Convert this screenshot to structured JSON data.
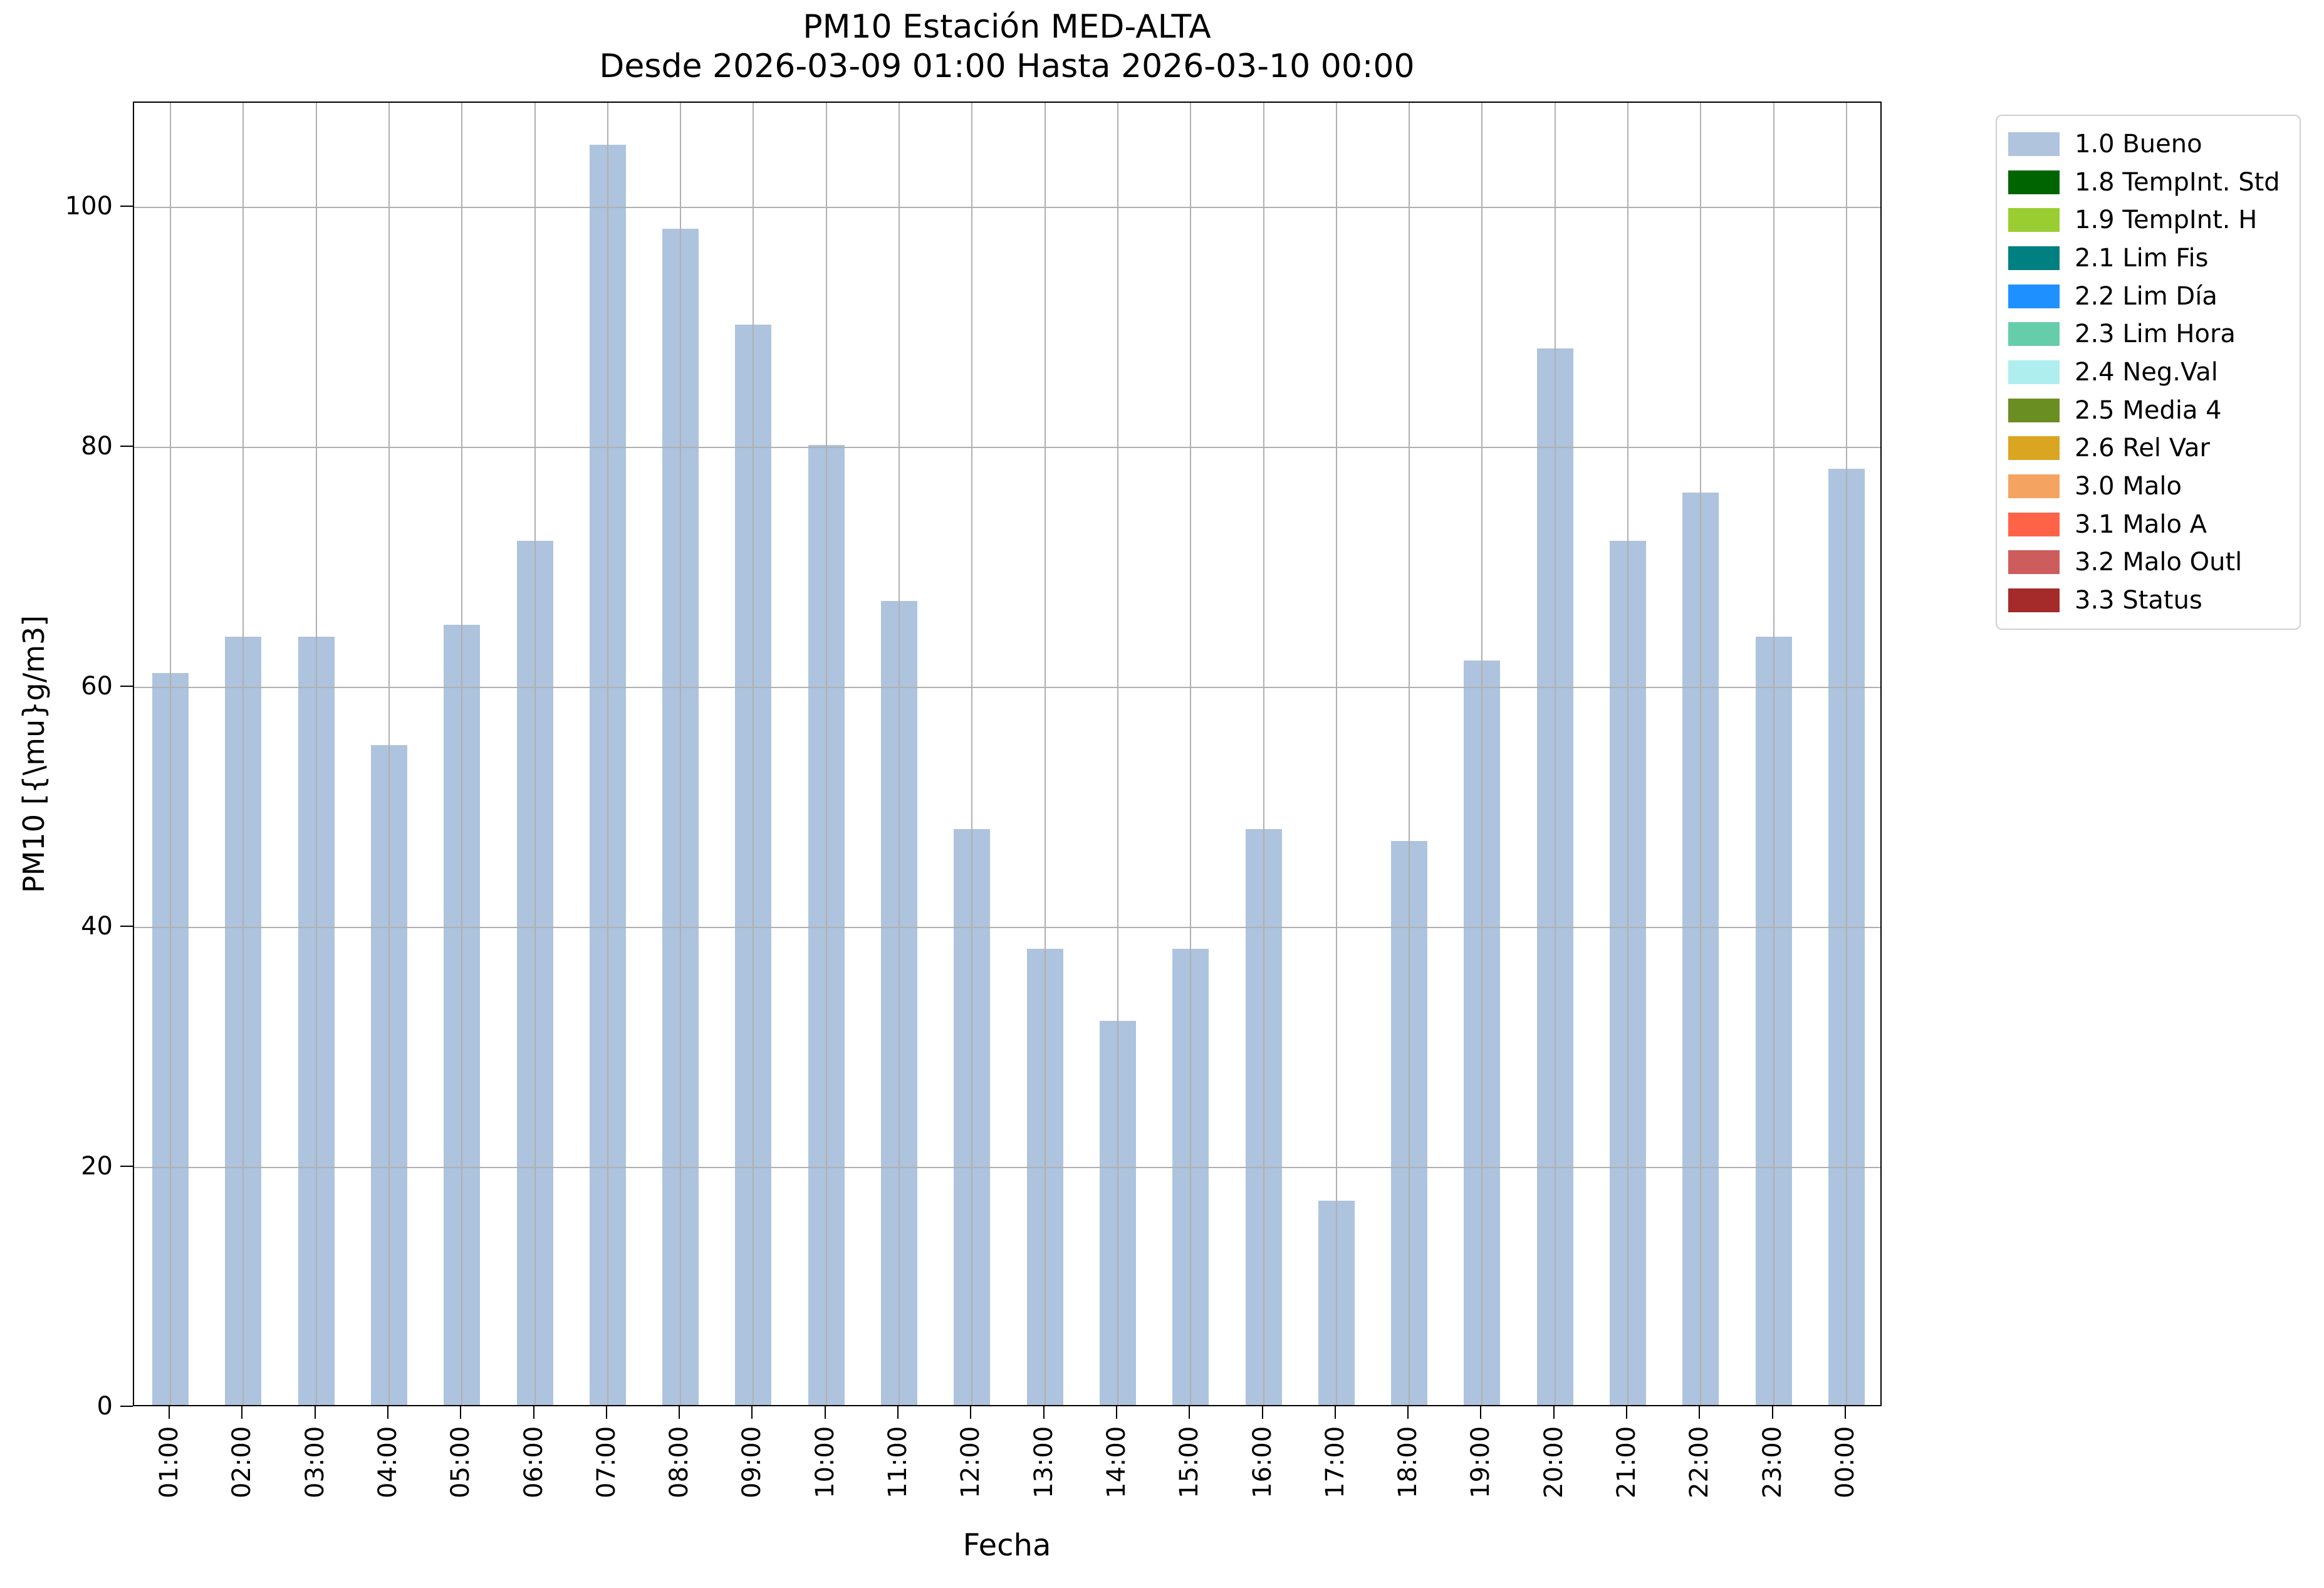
{
  "figure": {
    "title_line1": "PM10 Estación MED-ALTA",
    "title_line2": "Desde 2026-03-09 01:00 Hasta 2026-03-10 00:00",
    "xlabel": "Fecha",
    "ylabel": "PM10 [{\\mu}g/m3]"
  },
  "chart_data": {
    "type": "bar",
    "title": "PM10 Estación MED-ALTA",
    "subtitle": "Desde 2026-03-09 01:00 Hasta 2026-03-10 00:00",
    "xlabel": "Fecha",
    "ylabel": "PM10 [{\\mu}g/m3]",
    "categories": [
      "01:00",
      "02:00",
      "03:00",
      "04:00",
      "05:00",
      "06:00",
      "07:00",
      "08:00",
      "09:00",
      "10:00",
      "11:00",
      "12:00",
      "13:00",
      "14:00",
      "15:00",
      "16:00",
      "17:00",
      "18:00",
      "19:00",
      "20:00",
      "21:00",
      "22:00",
      "23:00",
      "00:00"
    ],
    "values": [
      61,
      64,
      64,
      55,
      65,
      72,
      105,
      98,
      90,
      80,
      67,
      48,
      38,
      32,
      38,
      48,
      17,
      47,
      62,
      88,
      72,
      76,
      64,
      78
    ],
    "series_name": "1.0 Bueno",
    "bar_color": "#aec3dd",
    "grid": true,
    "grid_color": "#b0b0b0",
    "yticks": [
      0,
      20,
      40,
      60,
      80,
      100
    ],
    "ylim": [
      0,
      108.7
    ],
    "legend_position": "outside-upper-right"
  },
  "legend": {
    "items": [
      {
        "label": "1.0 Bueno",
        "color": "#b0c4de"
      },
      {
        "label": "1.8 TempInt. Std",
        "color": "#006400"
      },
      {
        "label": "1.9 TempInt. H",
        "color": "#9acd32"
      },
      {
        "label": "2.1 Lim Fis",
        "color": "#008080"
      },
      {
        "label": "2.2 Lim Día",
        "color": "#1e90ff"
      },
      {
        "label": "2.3 Lim Hora",
        "color": "#66cdaa"
      },
      {
        "label": "2.4 Neg.Val",
        "color": "#afeeee"
      },
      {
        "label": "2.5 Media 4",
        "color": "#6b8e23"
      },
      {
        "label": "2.6 Rel Var",
        "color": "#daa520"
      },
      {
        "label": "3.0 Malo",
        "color": "#f4a460"
      },
      {
        "label": "3.1 Malo A",
        "color": "#ff6347"
      },
      {
        "label": "3.2 Malo Outl",
        "color": "#cd5c5c"
      },
      {
        "label": "3.3 Status",
        "color": "#a52a2a"
      }
    ]
  }
}
